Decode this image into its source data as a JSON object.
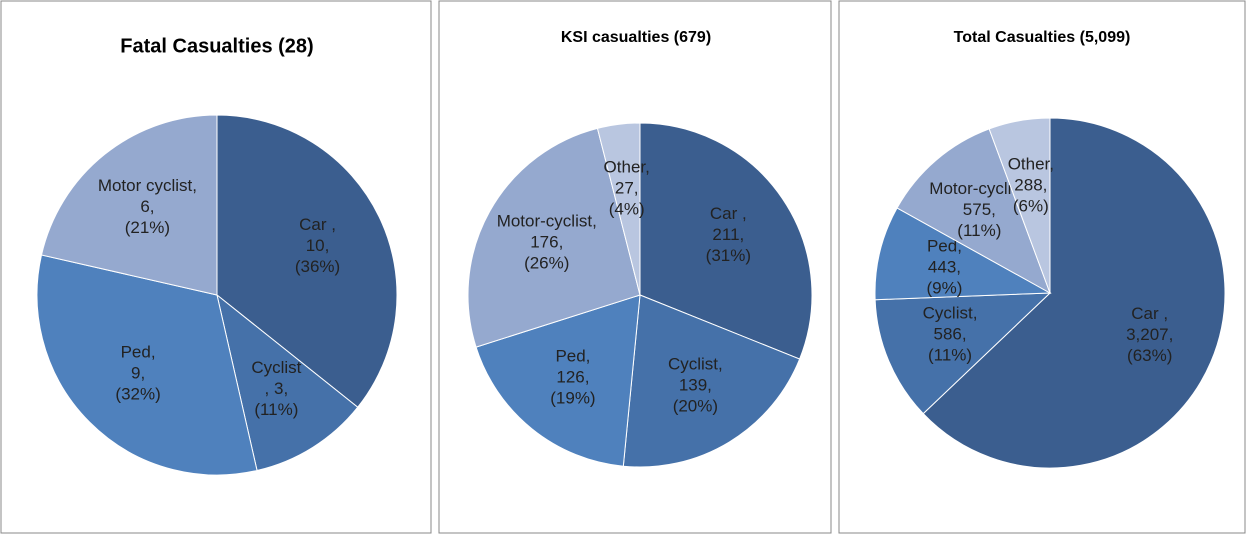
{
  "chart_data": [
    {
      "type": "pie",
      "title": "Fatal Casualties (28)",
      "categories": [
        "Car ,",
        "Cyclist",
        "Ped,",
        "Motor cyclist,"
      ],
      "values": [
        10,
        3,
        9,
        6
      ],
      "value_labels": [
        "10,",
        ", 3,",
        "9,",
        "6,"
      ],
      "percents": [
        36,
        11,
        32,
        21
      ],
      "percent_labels": [
        "(36%)",
        "(11%)",
        "(32%)",
        "(21%)"
      ],
      "colors": [
        "#3b5e8f",
        "#4571a9",
        "#4f81bd",
        "#95a9cf"
      ]
    },
    {
      "type": "pie",
      "title": "KSI casualties (679)",
      "categories": [
        "Car ,",
        "Cyclist,",
        "Ped,",
        "Motor-cyclist,",
        "Other,"
      ],
      "values": [
        211,
        139,
        126,
        176,
        27
      ],
      "value_labels": [
        "211,",
        "139,",
        "126,",
        "176,",
        "27,"
      ],
      "percents": [
        31,
        20,
        19,
        26,
        4
      ],
      "percent_labels": [
        "(31%)",
        "(20%)",
        "(19%)",
        "(26%)",
        "(4%)"
      ],
      "colors": [
        "#3b5e8f",
        "#4571a9",
        "#4f81bd",
        "#95a9cf",
        "#b9c6e0"
      ]
    },
    {
      "type": "pie",
      "title": "Total Casualties  (5,099)",
      "categories": [
        "Car ,",
        "Cyclist,",
        "Ped,",
        "Motor-cyclist,",
        "Other,"
      ],
      "values": [
        3207,
        586,
        443,
        575,
        288
      ],
      "value_labels": [
        "3,207,",
        "586,",
        "443,",
        "575,",
        "288,"
      ],
      "percents": [
        63,
        11,
        9,
        11,
        6
      ],
      "percent_labels": [
        "(63%)",
        "(11%)",
        "(9%)",
        "(11%)",
        "(6%)"
      ],
      "colors": [
        "#3b5e8f",
        "#4571a9",
        "#4f81bd",
        "#95a9cf",
        "#b9c6e0"
      ]
    }
  ]
}
